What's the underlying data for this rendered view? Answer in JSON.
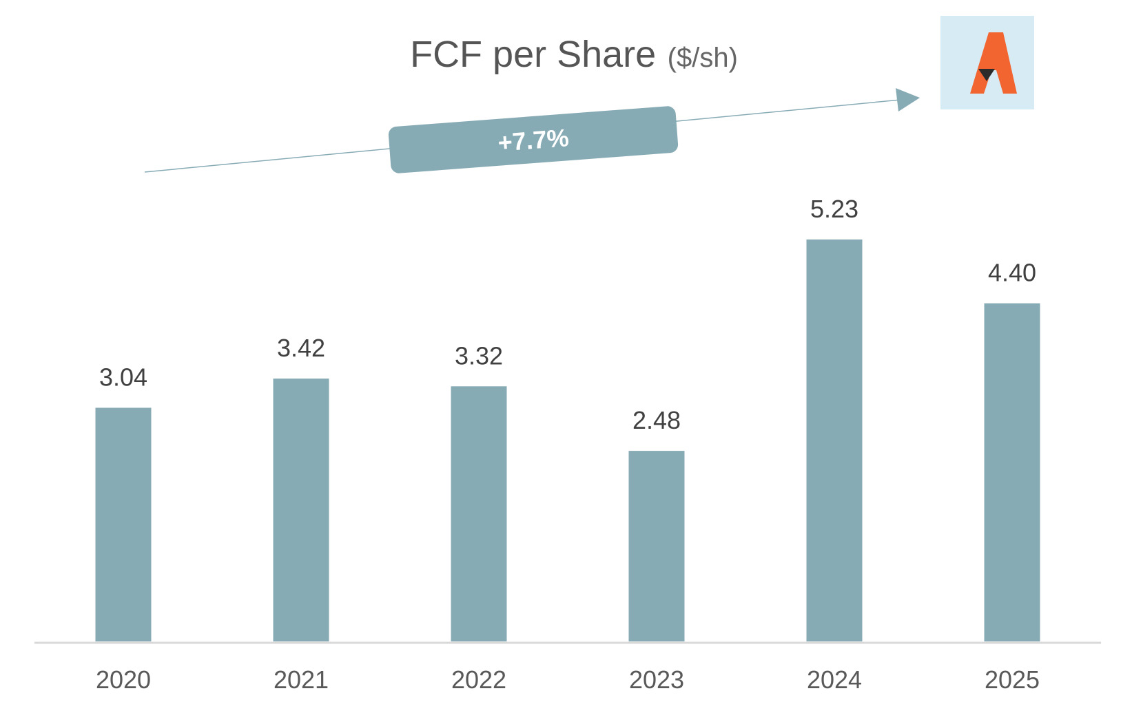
{
  "colors": {
    "bar": "#87abb5",
    "axis": "#d9d9d9",
    "trend": "#87abb5",
    "logo_bg": "#d6ebf3",
    "logo_orange": "#f26430",
    "logo_dark": "#2b2b2b"
  },
  "logo_icon": "company-logo-icon",
  "chart_data": {
    "type": "bar",
    "title": "FCF per Share",
    "title_unit": "($/sh)",
    "categories": [
      "2020",
      "2021",
      "2022",
      "2023",
      "2024",
      "2025"
    ],
    "values": [
      3.04,
      3.42,
      3.32,
      2.48,
      5.23,
      4.4
    ],
    "value_labels": [
      "3.04",
      "3.42",
      "3.32",
      "2.48",
      "5.23",
      "4.40"
    ],
    "ylim": [
      0,
      5.23
    ],
    "grid": false,
    "legend": "none",
    "annotation": {
      "text": "+7.7%",
      "type": "trend-arrow"
    }
  }
}
